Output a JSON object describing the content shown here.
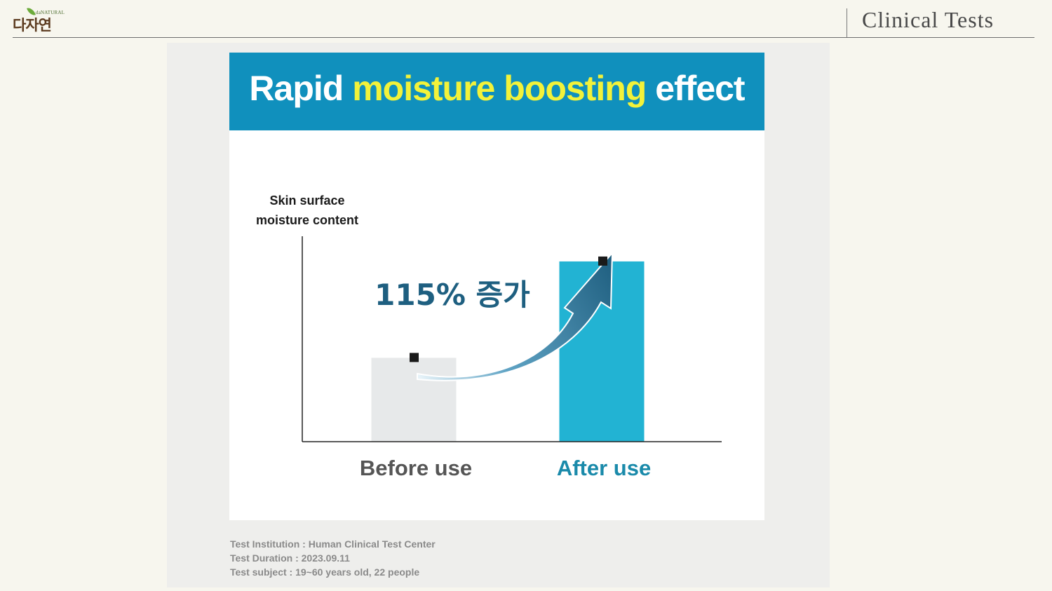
{
  "header": {
    "logo_en": "daNATURAL",
    "logo_ko": "다자연",
    "title": "Clinical Tests"
  },
  "card": {
    "banner": {
      "part1": "Rapid ",
      "highlight": "moisture boosting",
      "part2": " effect"
    },
    "annotation": "115% 증가"
  },
  "chart_data": {
    "type": "bar",
    "ylabel_lines": [
      "Skin surface",
      "moisture content"
    ],
    "categories": [
      "Before use",
      "After use"
    ],
    "values": [
      100,
      215
    ],
    "colors": [
      "#e7e9ea",
      "#22b3d3"
    ],
    "label_colors": [
      "#555555",
      "#1a8aaa"
    ],
    "ylim": [
      0,
      240
    ],
    "grid": false,
    "annotation": "115% 증가"
  },
  "footnotes": {
    "institution": "Test Institution : Human Clinical Test Center",
    "duration": "Test Duration : 2023.09.11",
    "subject": "Test subject : 19~60 years old, 22 people"
  }
}
